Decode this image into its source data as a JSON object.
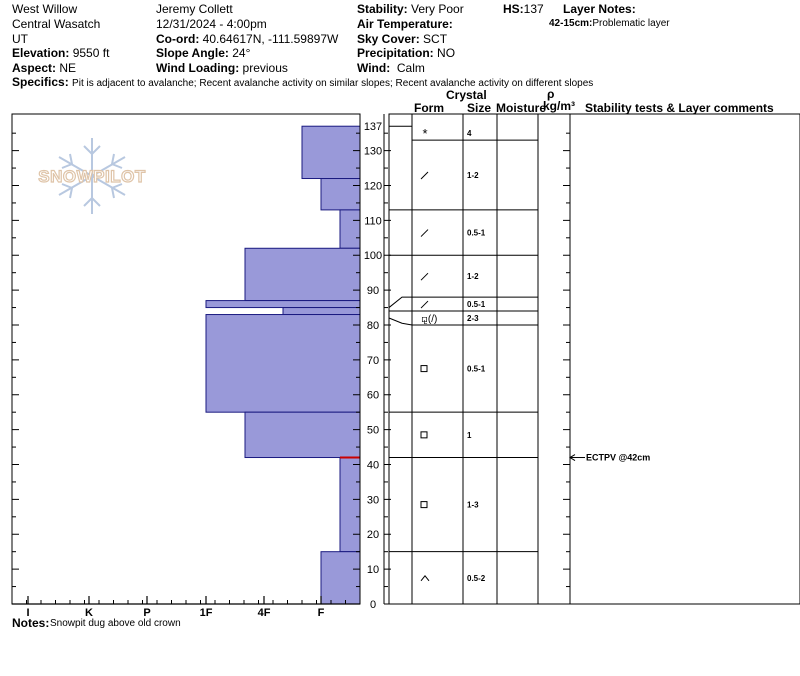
{
  "header": {
    "location": "West Willow",
    "range": "Central Wasatch",
    "state": "UT",
    "elevation_label": "Elevation:",
    "elevation": "9550 ft",
    "aspect_label": "Aspect:",
    "aspect": "NE",
    "observer": "Jeremy  Collett",
    "datetime": "12/31/2024 - 4:00pm",
    "coord_label": "Co-ord:",
    "coord": "40.64617N, -111.59897W",
    "slope_label": "Slope Angle:",
    "slope": "24°",
    "wind_loading_label": "Wind Loading:",
    "wind_loading": "previous",
    "stability_label": "Stability:",
    "stability": "Very Poor",
    "air_temp_label": "Air Temperature:",
    "sky_label": "Sky Cover:",
    "sky": "SCT",
    "precip_label": "Precipitation:",
    "precip": "NO",
    "wind_label": "Wind:",
    "wind": "Calm",
    "hs_label": "HS:",
    "hs": "137",
    "layer_notes_label": "Layer Notes:",
    "layer_note_range": "42-15cm:",
    "layer_note_text": "Problematic layer",
    "specifics_label": "Specifics:",
    "specifics": "Pit is adjacent to avalanche; Recent avalanche activity on similar slopes; Recent avalanche activity on different slopes"
  },
  "columns": {
    "crystal": "Crystal",
    "form": "Form",
    "size": "Size",
    "moisture": "Moisture",
    "rho": "ρ",
    "density": "kg/m³",
    "stability": "Stability tests & Layer comments"
  },
  "logo_text": "SNOWPILOT",
  "stability_test": "ECTPV @42cm",
  "notes_label": "Notes:",
  "notes": "Snowpit dug above old crown",
  "colors": {
    "hardness_fill": "#9999d9",
    "hardness_stroke": "#1a1a80",
    "critical_layer": "#cc0000",
    "logo": "#dfc4a8"
  },
  "chart_data": {
    "type": "bar",
    "title": "",
    "xlabel": "",
    "ylabel": "",
    "x_ticks": [
      "I",
      "K",
      "P",
      "1F",
      "4F",
      "F"
    ],
    "y_ticks": [
      0,
      10,
      20,
      30,
      40,
      50,
      60,
      70,
      80,
      90,
      100,
      110,
      120,
      130,
      137
    ],
    "ylim": [
      0,
      137
    ],
    "hardness_profile": [
      {
        "top": 137,
        "bottom": 122,
        "hardness": "F+"
      },
      {
        "top": 122,
        "bottom": 113,
        "hardness": "F"
      },
      {
        "top": 113,
        "bottom": 102,
        "hardness": "F-"
      },
      {
        "top": 102,
        "bottom": 87,
        "hardness": "4F+"
      },
      {
        "top": 87,
        "bottom": 85,
        "hardness": "1F"
      },
      {
        "top": 85,
        "bottom": 83,
        "hardness": "4F-"
      },
      {
        "top": 83,
        "bottom": 55,
        "hardness": "1F"
      },
      {
        "top": 55,
        "bottom": 42,
        "hardness": "4F+"
      },
      {
        "top": 42,
        "bottom": 15,
        "hardness": "F-"
      },
      {
        "top": 15,
        "bottom": 0,
        "hardness": "F"
      }
    ],
    "layers": [
      {
        "top": 137,
        "bottom": 133,
        "form": "*",
        "size": "4"
      },
      {
        "top": 133,
        "bottom": 113,
        "form": "/",
        "size": "1-2"
      },
      {
        "top": 113,
        "bottom": 100,
        "form": "/",
        "size": "0.5-1"
      },
      {
        "top": 100,
        "bottom": 88,
        "form": "/",
        "size": "1-2"
      },
      {
        "top": 88,
        "bottom": 84,
        "form": "/",
        "size": "0.5-1"
      },
      {
        "top": 84,
        "bottom": 80,
        "form": "⚼(/)",
        "size": "2-3"
      },
      {
        "top": 80,
        "bottom": 55,
        "form": "□",
        "size": "0.5-1"
      },
      {
        "top": 55,
        "bottom": 42,
        "form": "□",
        "size": "1"
      },
      {
        "top": 42,
        "bottom": 15,
        "form": "□",
        "size": "1-3"
      },
      {
        "top": 15,
        "bottom": 0,
        "form": "∧",
        "size": "0.5-2"
      }
    ],
    "critical_depth": 42,
    "stability_test_depth": 42
  }
}
